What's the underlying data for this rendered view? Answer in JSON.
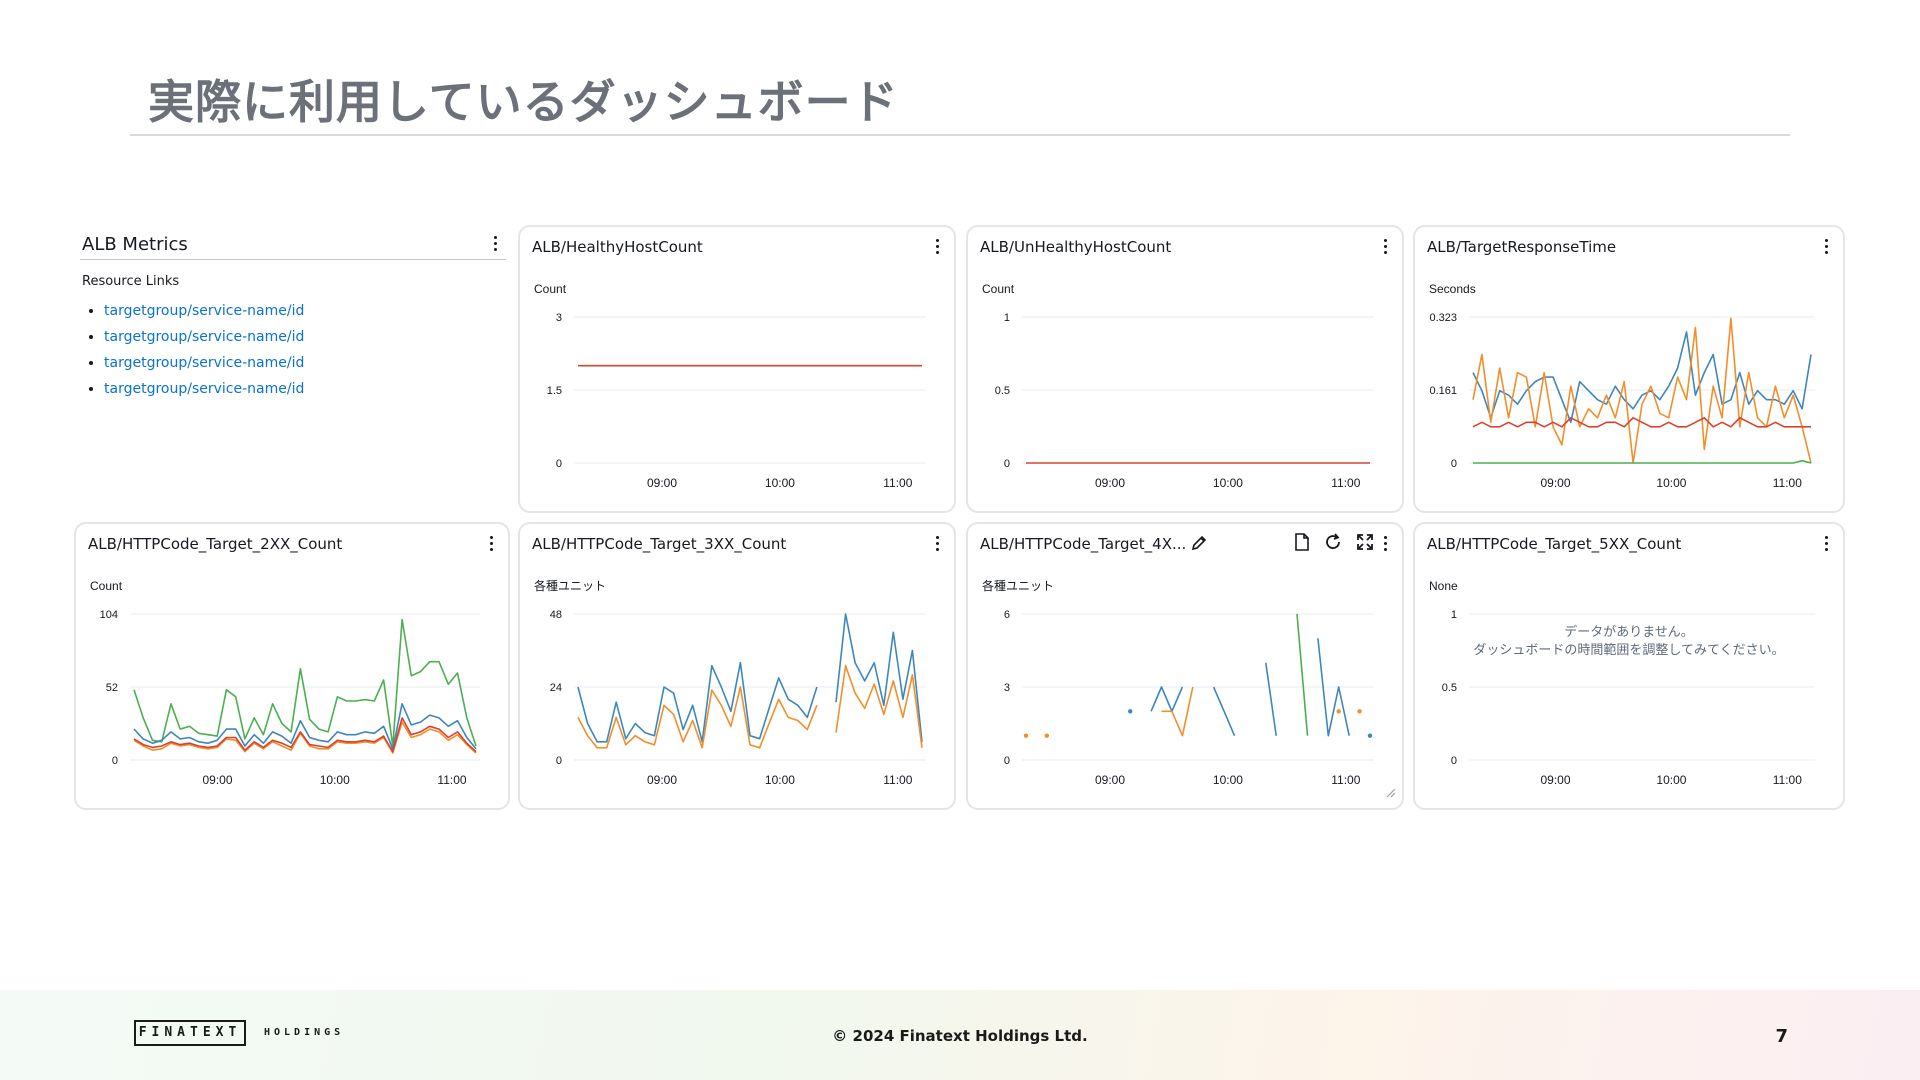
{
  "slide": {
    "title": "実際に利用しているダッシュボード",
    "copyright": "© 2024 Finatext Holdings Ltd.",
    "page_number": "7",
    "logo_main": "FINATEXT",
    "logo_sub": "HOLDINGS"
  },
  "text_widget": {
    "title": "ALB Metrics",
    "resource_heading": "Resource Links",
    "links": [
      "targetgroup/service-name/id",
      "targetgroup/service-name/id",
      "targetgroup/service-name/id",
      "targetgroup/service-name/id"
    ]
  },
  "widgets": {
    "healthy": {
      "title": "ALB/HealthyHostCount"
    },
    "unhealthy": {
      "title": "ALB/UnHealthyHostCount"
    },
    "response": {
      "title": "ALB/TargetResponseTime"
    },
    "code2xx": {
      "title": "ALB/HTTPCode_Target_2XX_Count"
    },
    "code3xx": {
      "title": "ALB/HTTPCode_Target_3XX_Count"
    },
    "code4xx": {
      "title": "ALB/HTTPCode_Target_4X..."
    },
    "code5xx": {
      "title": "ALB/HTTPCode_Target_5XX_Count",
      "no_data_line1": "データがありません。",
      "no_data_line2": "ダッシュボードの時間範囲を調整してみてください。"
    }
  },
  "icons": [
    "kebab-menu-icon",
    "edit-icon",
    "export-icon",
    "refresh-icon",
    "fullscreen-icon",
    "resize-handle-icon"
  ],
  "colors": {
    "blue": "#3d87bd",
    "orange": "#f28e2b",
    "red": "#d9432e",
    "green": "#4caf50",
    "link": "#0972d3"
  },
  "chart_data": [
    {
      "id": "healthy",
      "type": "line",
      "ylabel": "Count",
      "yticks": [
        "3",
        "1.5",
        "0"
      ],
      "ylim": [
        0,
        3
      ],
      "xticks": [
        "09:00",
        "10:00",
        "11:00"
      ],
      "series": [
        {
          "color": "red",
          "values": [
            2,
            2,
            2,
            2,
            2,
            2,
            2,
            2,
            2,
            2,
            2,
            2,
            2,
            2,
            2,
            2,
            2,
            2,
            2,
            2,
            2,
            2,
            2,
            2,
            2,
            2,
            2,
            2,
            2,
            2
          ]
        }
      ]
    },
    {
      "id": "unhealthy",
      "type": "line",
      "ylabel": "Count",
      "yticks": [
        "1",
        "0.5",
        "0"
      ],
      "ylim": [
        0,
        1
      ],
      "xticks": [
        "09:00",
        "10:00",
        "11:00"
      ],
      "series": [
        {
          "color": "red",
          "values": [
            0,
            0,
            0,
            0,
            0,
            0,
            0,
            0,
            0,
            0,
            0,
            0,
            0,
            0,
            0,
            0,
            0,
            0,
            0,
            0,
            0,
            0,
            0,
            0,
            0,
            0,
            0,
            0,
            0,
            0
          ]
        }
      ]
    },
    {
      "id": "response",
      "type": "line",
      "ylabel": "Seconds",
      "yticks": [
        "0.323",
        "0.161",
        "0"
      ],
      "ylim": [
        0,
        0.323
      ],
      "xticks": [
        "09:00",
        "10:00",
        "11:00"
      ],
      "series": [
        {
          "color": "blue",
          "values": [
            0.2,
            0.16,
            0.1,
            0.16,
            0.15,
            0.13,
            0.16,
            0.18,
            0.19,
            0.19,
            0.14,
            0.09,
            0.18,
            0.16,
            0.14,
            0.13,
            0.17,
            0.14,
            0.12,
            0.15,
            0.16,
            0.14,
            0.17,
            0.21,
            0.29,
            0.15,
            0.2,
            0.24,
            0.13,
            0.14,
            0.2,
            0.13,
            0.16,
            0.14,
            0.14,
            0.13,
            0.16,
            0.12,
            0.24
          ]
        },
        {
          "color": "orange",
          "values": [
            0.14,
            0.24,
            0.09,
            0.21,
            0.1,
            0.2,
            0.19,
            0.08,
            0.2,
            0.08,
            0.04,
            0.17,
            0.08,
            0.12,
            0.1,
            0.15,
            0.1,
            0.18,
            0.0,
            0.13,
            0.17,
            0.11,
            0.1,
            0.19,
            0.14,
            0.3,
            0.03,
            0.17,
            0.1,
            0.32,
            0.08,
            0.2,
            0.1,
            0.08,
            0.17,
            0.1,
            0.15,
            0.08,
            0.0
          ]
        },
        {
          "color": "red",
          "values": [
            0.08,
            0.09,
            0.08,
            0.08,
            0.09,
            0.08,
            0.09,
            0.09,
            0.08,
            0.09,
            0.08,
            0.1,
            0.09,
            0.08,
            0.08,
            0.09,
            0.09,
            0.08,
            0.1,
            0.09,
            0.08,
            0.08,
            0.09,
            0.08,
            0.08,
            0.09,
            0.1,
            0.08,
            0.09,
            0.08,
            0.1,
            0.09,
            0.08,
            0.08,
            0.09,
            0.08,
            0.08,
            0.08,
            0.08
          ]
        },
        {
          "color": "green",
          "values": [
            0,
            0,
            0,
            0,
            0,
            0,
            0,
            0,
            0,
            0,
            0,
            0,
            0,
            0,
            0,
            0,
            0,
            0,
            0,
            0,
            0,
            0,
            0,
            0,
            0,
            0,
            0,
            0,
            0,
            0,
            0,
            0,
            0,
            0,
            0,
            0,
            0,
            0.005,
            0
          ]
        }
      ]
    },
    {
      "id": "code2xx",
      "type": "line",
      "ylabel": "Count",
      "yticks": [
        "104",
        "52",
        "0"
      ],
      "ylim": [
        0,
        104
      ],
      "xticks": [
        "09:00",
        "10:00",
        "11:00"
      ],
      "series": [
        {
          "color": "green",
          "values": [
            50,
            30,
            14,
            13,
            40,
            22,
            24,
            19,
            18,
            17,
            50,
            45,
            15,
            30,
            18,
            40,
            26,
            20,
            65,
            29,
            22,
            20,
            45,
            42,
            42,
            43,
            42,
            57,
            10,
            100,
            60,
            63,
            70,
            70,
            54,
            62,
            30,
            10
          ]
        },
        {
          "color": "blue",
          "values": [
            22,
            15,
            12,
            14,
            20,
            15,
            16,
            13,
            12,
            14,
            22,
            22,
            10,
            18,
            12,
            20,
            17,
            12,
            28,
            16,
            14,
            13,
            20,
            18,
            18,
            20,
            19,
            24,
            8,
            40,
            25,
            27,
            32,
            30,
            24,
            28,
            16,
            8
          ]
        },
        {
          "color": "orange",
          "values": [
            14,
            10,
            7,
            8,
            12,
            10,
            11,
            9,
            8,
            9,
            15,
            14,
            6,
            12,
            8,
            13,
            10,
            7,
            19,
            10,
            8,
            8,
            13,
            12,
            12,
            13,
            12,
            16,
            5,
            27,
            16,
            18,
            22,
            20,
            14,
            18,
            11,
            5
          ]
        },
        {
          "color": "red",
          "values": [
            15,
            11,
            9,
            10,
            13,
            11,
            12,
            10,
            9,
            10,
            16,
            16,
            7,
            13,
            9,
            14,
            12,
            9,
            20,
            11,
            10,
            9,
            14,
            13,
            13,
            14,
            13,
            17,
            6,
            30,
            18,
            20,
            24,
            22,
            16,
            20,
            12,
            6
          ]
        }
      ]
    },
    {
      "id": "code3xx",
      "type": "line",
      "ylabel": "各種ユニット",
      "yticks": [
        "48",
        "24",
        "0"
      ],
      "ylim": [
        0,
        48
      ],
      "xticks": [
        "09:00",
        "10:00",
        "11:00"
      ],
      "series": [
        {
          "color": "blue",
          "values": [
            24,
            12,
            6,
            6,
            19,
            7,
            12,
            9,
            8,
            24,
            22,
            10,
            18,
            6,
            31,
            24,
            16,
            32,
            8,
            7,
            17,
            27,
            20,
            18,
            14,
            24,
            null,
            19,
            48,
            32,
            26,
            32,
            18,
            42,
            20,
            36,
            6
          ]
        },
        {
          "color": "orange",
          "values": [
            14,
            8,
            4,
            4,
            14,
            5,
            8,
            6,
            5,
            18,
            15,
            6,
            13,
            4,
            23,
            18,
            11,
            24,
            5,
            4,
            12,
            20,
            14,
            13,
            10,
            18,
            null,
            9,
            31,
            22,
            17,
            25,
            15,
            26,
            14,
            28,
            4
          ]
        }
      ]
    },
    {
      "id": "code4xx",
      "type": "line",
      "ylabel": "各種ユニット",
      "yticks": [
        "6",
        "3",
        "0"
      ],
      "ylim": [
        0,
        6
      ],
      "xticks": [
        "09:00",
        "10:00",
        "11:00"
      ],
      "series": [
        {
          "color": "blue",
          "values": [
            null,
            null,
            null,
            null,
            null,
            null,
            null,
            null,
            null,
            null,
            2,
            null,
            2,
            3,
            2,
            3,
            null,
            null,
            3,
            2,
            1,
            null,
            null,
            4,
            1,
            null,
            null,
            null,
            5,
            1,
            3,
            1,
            null,
            1
          ]
        },
        {
          "color": "orange",
          "values": [
            1,
            null,
            1,
            null,
            null,
            null,
            null,
            null,
            null,
            null,
            null,
            null,
            null,
            2,
            2,
            1,
            3,
            null,
            null,
            null,
            null,
            null,
            null,
            null,
            null,
            null,
            null,
            null,
            null,
            null,
            2,
            null,
            2,
            null
          ]
        },
        {
          "color": "green",
          "values": [
            null,
            null,
            null,
            null,
            null,
            null,
            null,
            null,
            null,
            null,
            null,
            null,
            null,
            null,
            null,
            null,
            null,
            null,
            null,
            null,
            null,
            null,
            null,
            null,
            null,
            null,
            6,
            1,
            null,
            null,
            null,
            null,
            null,
            null
          ]
        }
      ]
    },
    {
      "id": "code5xx",
      "type": "line",
      "ylabel": "None",
      "yticks": [
        "1",
        "0.5",
        "0"
      ],
      "ylim": [
        0,
        1
      ],
      "xticks": [
        "09:00",
        "10:00",
        "11:00"
      ],
      "series": []
    }
  ]
}
